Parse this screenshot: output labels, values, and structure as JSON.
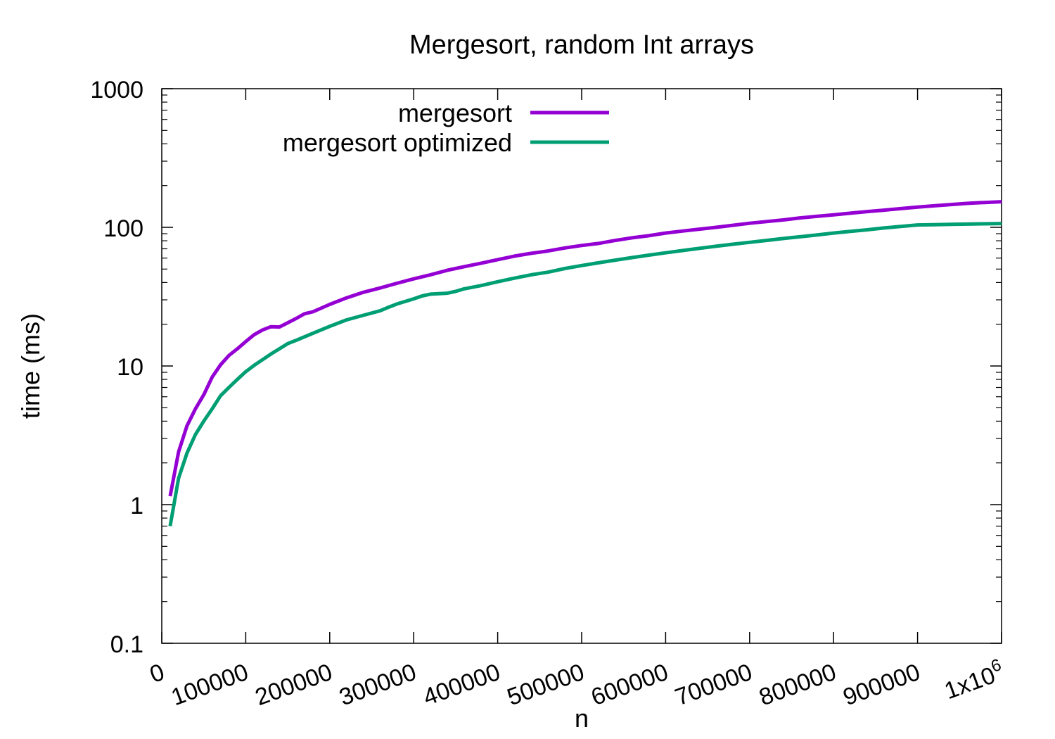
{
  "chart_data": {
    "type": "line",
    "title": "Mergesort, random Int arrays",
    "xlabel": "n",
    "ylabel": "time (ms)",
    "xlim": [
      0,
      1000000
    ],
    "ylim": [
      0.1,
      1000
    ],
    "yscale": "log",
    "grid": false,
    "legend_position": "top-left",
    "x_ticks": [
      {
        "value": 0,
        "label": "0"
      },
      {
        "value": 100000,
        "label": "100000"
      },
      {
        "value": 200000,
        "label": "200000"
      },
      {
        "value": 300000,
        "label": "300000"
      },
      {
        "value": 400000,
        "label": "400000"
      },
      {
        "value": 500000,
        "label": "500000"
      },
      {
        "value": 600000,
        "label": "600000"
      },
      {
        "value": 700000,
        "label": "700000"
      },
      {
        "value": 800000,
        "label": "800000"
      },
      {
        "value": 900000,
        "label": "900000"
      },
      {
        "value": 1000000,
        "label": "1x10",
        "sup": "6"
      }
    ],
    "y_ticks": [
      {
        "value": 0.1,
        "label": "0.1"
      },
      {
        "value": 1,
        "label": "1"
      },
      {
        "value": 10,
        "label": "10"
      },
      {
        "value": 100,
        "label": "100"
      },
      {
        "value": 1000,
        "label": "1000"
      }
    ],
    "series": [
      {
        "name": "mergesort",
        "color": "#9400d3",
        "x": [
          10000,
          20000,
          30000,
          40000,
          50000,
          60000,
          70000,
          80000,
          90000,
          100000,
          110000,
          120000,
          130000,
          140000,
          150000,
          160000,
          170000,
          180000,
          200000,
          220000,
          240000,
          260000,
          280000,
          300000,
          320000,
          340000,
          360000,
          380000,
          400000,
          420000,
          440000,
          460000,
          480000,
          500000,
          520000,
          540000,
          560000,
          580000,
          600000,
          620000,
          640000,
          660000,
          680000,
          700000,
          720000,
          740000,
          760000,
          780000,
          800000,
          820000,
          840000,
          860000,
          880000,
          900000,
          920000,
          940000,
          960000,
          980000,
          1000000
        ],
        "values": [
          1.15,
          2.4,
          3.7,
          4.9,
          6.2,
          8.3,
          10.2,
          11.9,
          13.3,
          15.0,
          16.8,
          18.2,
          19.2,
          19.1,
          20.5,
          22.0,
          23.8,
          24.6,
          27.8,
          31.0,
          34.0,
          36.5,
          39.5,
          42.5,
          45.5,
          49.0,
          52.0,
          55.0,
          58.5,
          62.0,
          65.0,
          67.5,
          71.0,
          74.0,
          76.5,
          80.5,
          84.0,
          87.0,
          91.0,
          94.0,
          97.0,
          100.0,
          103.5,
          107.0,
          110.0,
          113.0,
          117.0,
          120.0,
          123.0,
          126.5,
          130.0,
          133.0,
          136.5,
          140.0,
          143.0,
          146.0,
          149.0,
          151.0,
          153.0
        ]
      },
      {
        "name": "mergesort optimized",
        "color": "#009e73",
        "x": [
          10000,
          20000,
          30000,
          40000,
          50000,
          60000,
          70000,
          80000,
          90000,
          100000,
          110000,
          120000,
          130000,
          140000,
          150000,
          160000,
          180000,
          200000,
          220000,
          240000,
          260000,
          270000,
          280000,
          300000,
          310000,
          320000,
          340000,
          350000,
          360000,
          380000,
          400000,
          420000,
          440000,
          460000,
          480000,
          500000,
          520000,
          540000,
          560000,
          580000,
          600000,
          620000,
          640000,
          660000,
          680000,
          700000,
          720000,
          740000,
          760000,
          780000,
          800000,
          820000,
          840000,
          860000,
          880000,
          900000,
          920000,
          940000,
          960000,
          980000,
          1000000
        ],
        "values": [
          0.7,
          1.55,
          2.35,
          3.2,
          4.0,
          4.9,
          6.1,
          7.0,
          8.0,
          9.1,
          10.1,
          11.1,
          12.2,
          13.3,
          14.5,
          15.3,
          17.2,
          19.3,
          21.5,
          23.2,
          25.0,
          26.5,
          28.0,
          30.5,
          32.0,
          33.0,
          33.5,
          34.5,
          36.0,
          38.0,
          40.5,
          43.0,
          45.5,
          47.5,
          50.5,
          53.0,
          55.5,
          58.0,
          60.5,
          63.0,
          65.5,
          68.0,
          70.5,
          73.0,
          75.5,
          78.0,
          80.5,
          83.0,
          85.5,
          88.0,
          91.0,
          93.5,
          96.0,
          99.0,
          101.5,
          104.0,
          104.5,
          105.0,
          105.5,
          106.0,
          106.5
        ]
      }
    ]
  }
}
